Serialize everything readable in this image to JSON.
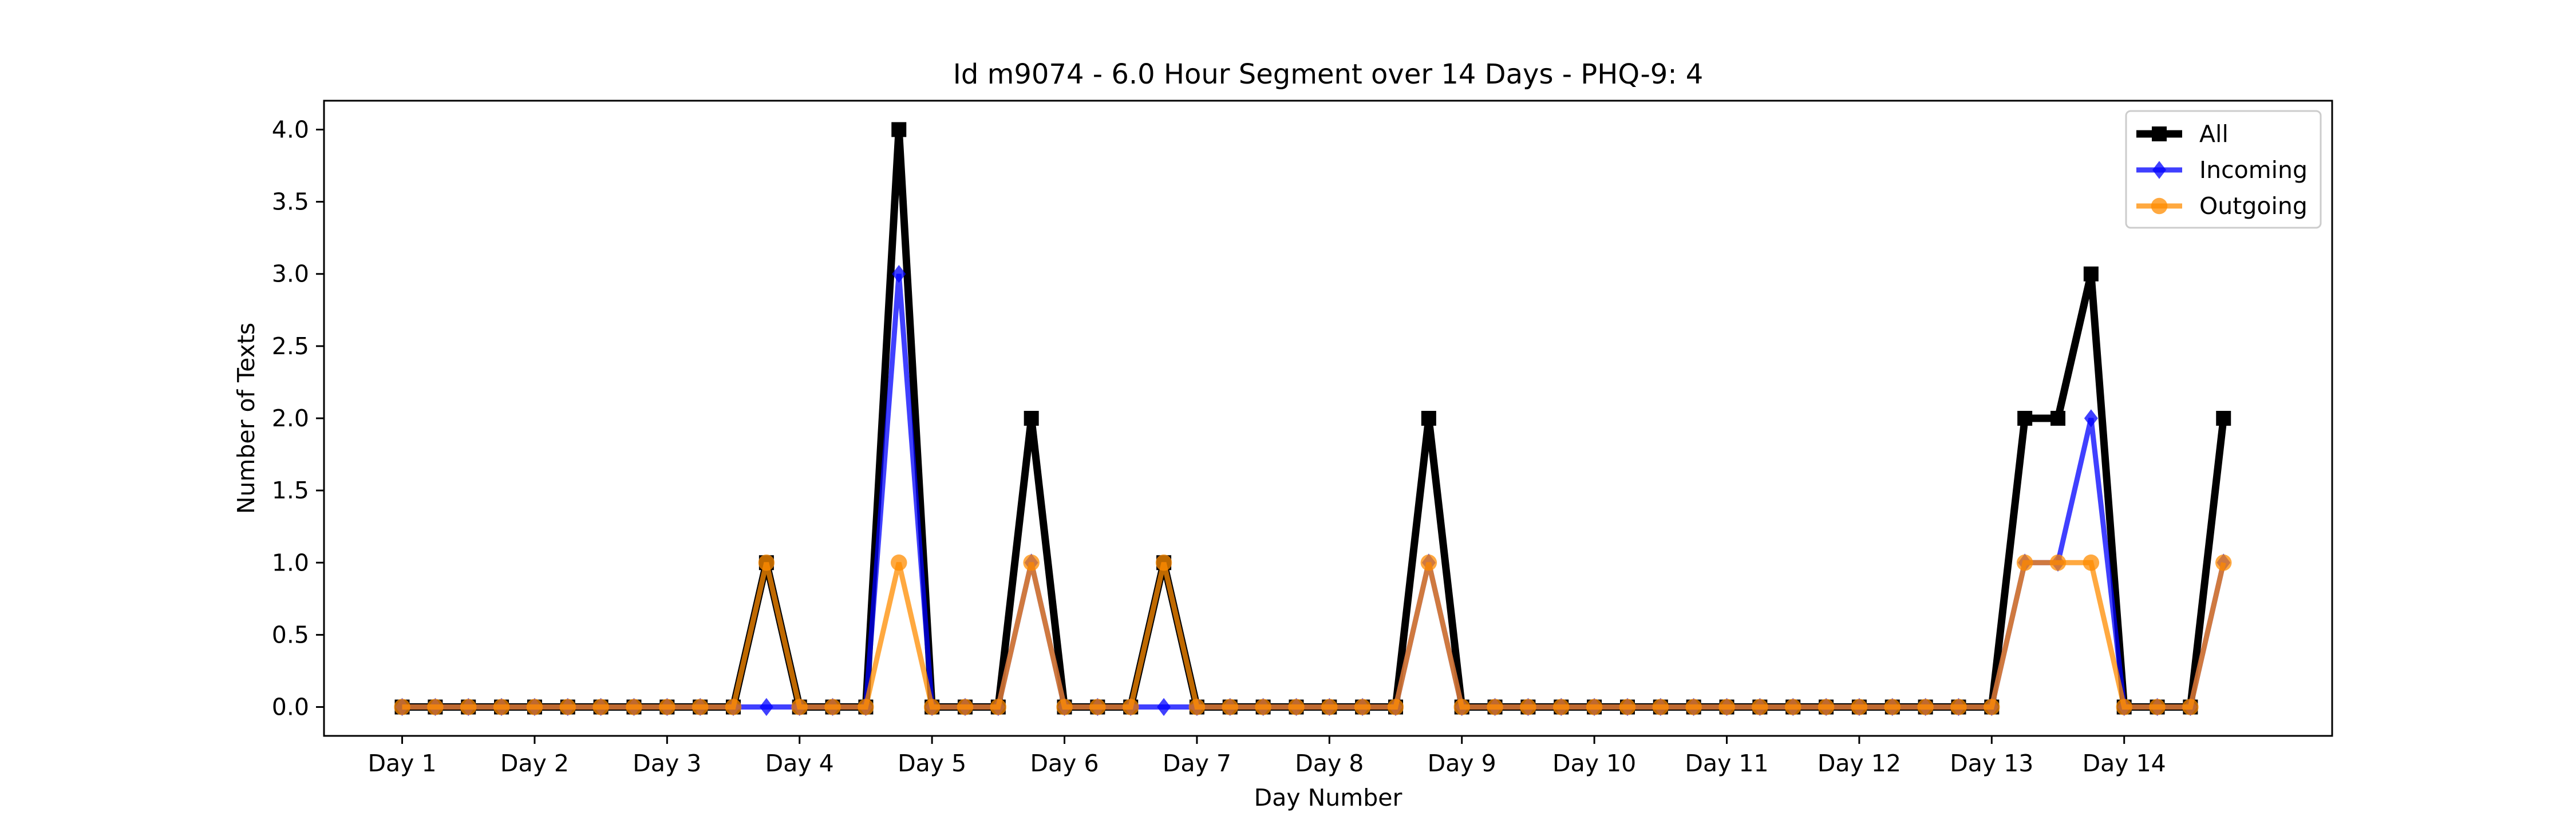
{
  "chart_data": {
    "type": "line",
    "title": "Id m9074 - 6.0 Hour Segment over 14 Days - PHQ-9: 4",
    "xlabel": "Day Number",
    "ylabel": "Number of Texts",
    "ylim": [
      -0.2,
      4.2
    ],
    "yticks": [
      0.0,
      0.5,
      1.0,
      1.5,
      2.0,
      2.5,
      3.0,
      3.5,
      4.0
    ],
    "ytick_labels": [
      "0.0",
      "0.5",
      "1.0",
      "1.5",
      "2.0",
      "2.5",
      "3.0",
      "3.5",
      "4.0"
    ],
    "xticks": [
      1,
      2,
      3,
      4,
      5,
      6,
      7,
      8,
      9,
      10,
      11,
      12,
      13,
      14
    ],
    "xtick_labels": [
      "Day 1",
      "Day 2",
      "Day 3",
      "Day 4",
      "Day 5",
      "Day 6",
      "Day 7",
      "Day 8",
      "Day 9",
      "Day 10",
      "Day 11",
      "Day 12",
      "Day 13",
      "Day 14"
    ],
    "xlim": [
      0.41,
      15.57
    ],
    "x": [
      1,
      1.25,
      1.5,
      1.75,
      2,
      2.25,
      2.5,
      2.75,
      3,
      3.25,
      3.5,
      3.75,
      4,
      4.25,
      4.5,
      4.75,
      5,
      5.25,
      5.5,
      5.75,
      6,
      6.25,
      6.5,
      6.75,
      7,
      7.25,
      7.5,
      7.75,
      8,
      8.25,
      8.5,
      8.75,
      9,
      9.25,
      9.5,
      9.75,
      10,
      10.25,
      10.5,
      10.75,
      11,
      11.25,
      11.5,
      11.75,
      12,
      12.25,
      12.5,
      12.75,
      13,
      13.25,
      13.5,
      13.75,
      14,
      14.25,
      14.5,
      14.75
    ],
    "series": [
      {
        "name": "All",
        "color": "#000000",
        "marker": "square",
        "values": [
          0,
          0,
          0,
          0,
          0,
          0,
          0,
          0,
          0,
          0,
          0,
          1,
          0,
          0,
          0,
          4,
          0,
          0,
          0,
          2,
          0,
          0,
          0,
          1,
          0,
          0,
          0,
          0,
          0,
          0,
          0,
          2,
          0,
          0,
          0,
          0,
          0,
          0,
          0,
          0,
          0,
          0,
          0,
          0,
          0,
          0,
          0,
          0,
          0,
          2,
          2,
          3,
          0,
          0,
          0,
          2
        ]
      },
      {
        "name": "Incoming",
        "color": "#0000ff",
        "marker": "diamond",
        "values": [
          0,
          0,
          0,
          0,
          0,
          0,
          0,
          0,
          0,
          0,
          0,
          0,
          0,
          0,
          0,
          3,
          0,
          0,
          0,
          1,
          0,
          0,
          0,
          0,
          0,
          0,
          0,
          0,
          0,
          0,
          0,
          1,
          0,
          0,
          0,
          0,
          0,
          0,
          0,
          0,
          0,
          0,
          0,
          0,
          0,
          0,
          0,
          0,
          0,
          1,
          1,
          2,
          0,
          0,
          0,
          1
        ]
      },
      {
        "name": "Outgoing",
        "color": "#ff8c00",
        "marker": "circle",
        "values": [
          0,
          0,
          0,
          0,
          0,
          0,
          0,
          0,
          0,
          0,
          0,
          1,
          0,
          0,
          0,
          1,
          0,
          0,
          0,
          1,
          0,
          0,
          0,
          1,
          0,
          0,
          0,
          0,
          0,
          0,
          0,
          1,
          0,
          0,
          0,
          0,
          0,
          0,
          0,
          0,
          0,
          0,
          0,
          0,
          0,
          0,
          0,
          0,
          0,
          1,
          1,
          1,
          0,
          0,
          0,
          1
        ]
      }
    ],
    "grid": false,
    "legend_position": "top-right"
  }
}
